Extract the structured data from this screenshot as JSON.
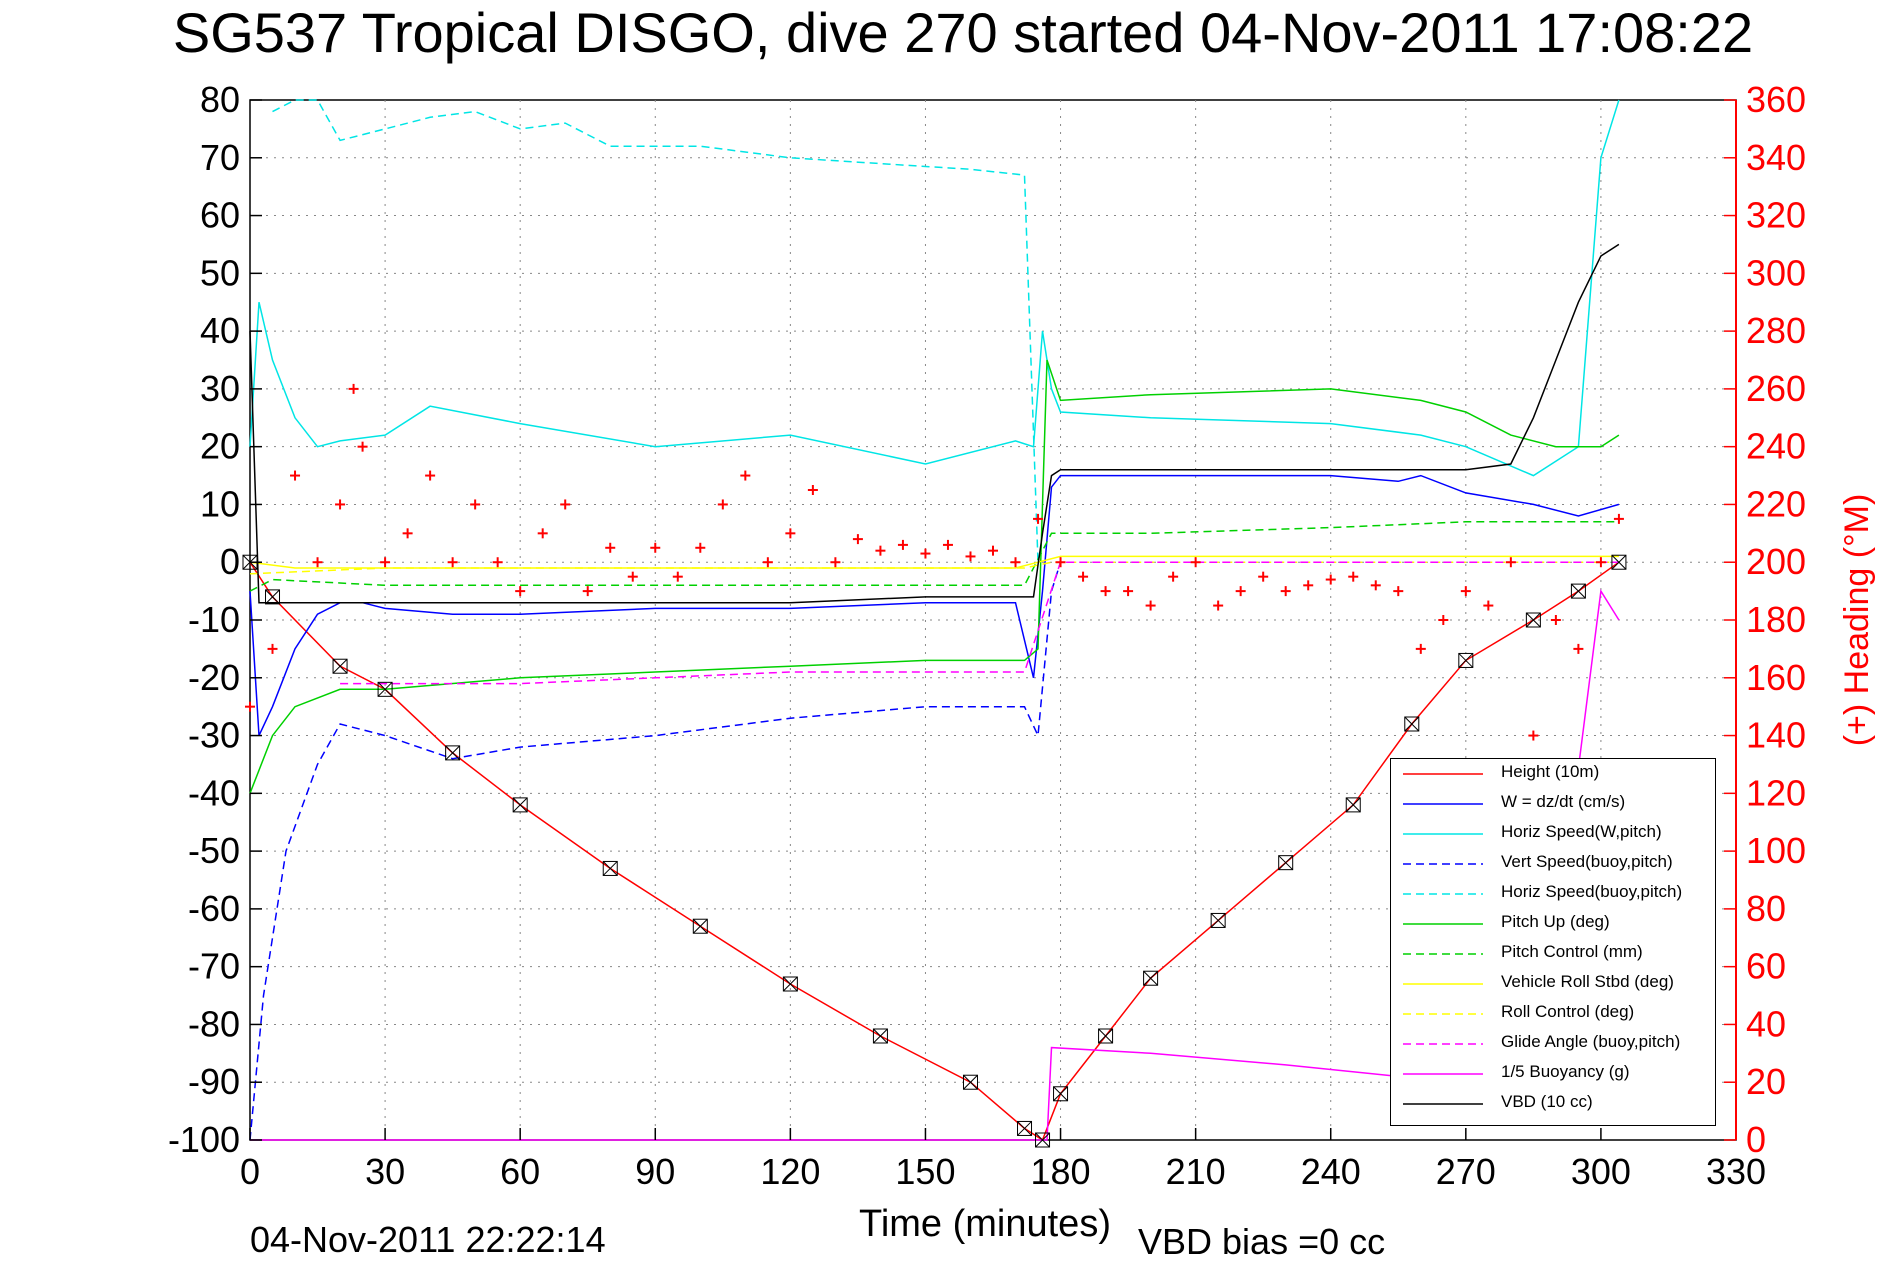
{
  "chart_data": {
    "type": "line",
    "title": "SG537 Tropical DISGO, dive 270 started 04-Nov-2011 17:08:22",
    "xlabel": "Time (minutes)",
    "ylabel_right": "(+) Heading (°M)",
    "footer_left": "04-Nov-2011 22:22:14",
    "footer_right": "VBD bias =0 cc",
    "xlim": [
      0,
      330
    ],
    "ylim": [
      -100,
      80
    ],
    "y2lim": [
      0,
      360
    ],
    "x_ticks": [
      0,
      30,
      60,
      90,
      120,
      150,
      180,
      210,
      240,
      270,
      300,
      330
    ],
    "y_ticks": [
      -100,
      -90,
      -80,
      -70,
      -60,
      -50,
      -40,
      -30,
      -20,
      -10,
      0,
      10,
      20,
      30,
      40,
      50,
      60,
      70,
      80
    ],
    "y2_ticks": [
      0,
      20,
      40,
      60,
      80,
      100,
      120,
      140,
      160,
      180,
      200,
      220,
      240,
      260,
      280,
      300,
      320,
      340,
      360
    ],
    "grid": true,
    "legend_position": "bottom-right",
    "colors": {
      "height": "#ff0000",
      "w": "#0000ff",
      "horiz_w": "#00e5e5",
      "vert_buoy": "#0000ff",
      "horiz_buoy": "#00e5e5",
      "pitch_up": "#00d000",
      "pitch_control": "#00d000",
      "roll": "#ffff00",
      "roll_control": "#ffff00",
      "glide": "#ff00ff",
      "buoyancy": "#ff00ff",
      "vbd": "#000000",
      "heading": "#ff0000",
      "right_axis": "#ff0000"
    },
    "series": [
      {
        "name": "Height (10m)",
        "style": "solid",
        "color": "#ff0000",
        "x": [
          0,
          5,
          20,
          30,
          45,
          60,
          80,
          100,
          120,
          140,
          160,
          172,
          176,
          180,
          190,
          200,
          215,
          230,
          245,
          258,
          270,
          285,
          295,
          304
        ],
        "y": [
          0,
          -6,
          -18,
          -22,
          -33,
          -42,
          -53,
          -63,
          -73,
          -82,
          -90,
          -98,
          -100,
          -92,
          -82,
          -72,
          -62,
          -52,
          -42,
          -28,
          -17,
          -10,
          -5,
          0
        ]
      },
      {
        "name": "W = dz/dt (cm/s)",
        "style": "solid",
        "color": "#0000ff",
        "x": [
          0,
          2,
          5,
          10,
          15,
          20,
          25,
          30,
          45,
          60,
          90,
          120,
          150,
          170,
          174,
          176,
          178,
          180,
          200,
          240,
          255,
          260,
          270,
          285,
          295,
          304
        ],
        "y": [
          -5,
          -30,
          -25,
          -15,
          -9,
          -7,
          -7,
          -8,
          -9,
          -9,
          -8,
          -8,
          -7,
          -7,
          -20,
          -5,
          13,
          15,
          15,
          15,
          14,
          15,
          12,
          10,
          8,
          10
        ]
      },
      {
        "name": "Horiz Speed(W,pitch)",
        "style": "solid",
        "color": "#00e5e5",
        "x": [
          0,
          2,
          5,
          10,
          15,
          20,
          30,
          40,
          60,
          90,
          120,
          150,
          170,
          174,
          176,
          178,
          180,
          200,
          240,
          260,
          270,
          285,
          295,
          300,
          304
        ],
        "y": [
          20,
          45,
          35,
          25,
          20,
          21,
          22,
          27,
          24,
          20,
          22,
          17,
          21,
          20,
          40,
          30,
          26,
          25,
          24,
          22,
          20,
          15,
          20,
          70,
          80
        ]
      },
      {
        "name": "Vert Speed(buoy,pitch)",
        "style": "dashed",
        "color": "#0000ff",
        "x": [
          0,
          3,
          8,
          15,
          20,
          30,
          45,
          60,
          90,
          120,
          150,
          172,
          175,
          178,
          180
        ],
        "y": [
          -100,
          -75,
          -50,
          -35,
          -28,
          -30,
          -34,
          -32,
          -30,
          -27,
          -25,
          -25,
          -30,
          -5,
          0
        ]
      },
      {
        "name": "Horiz Speed(buoy,pitch)",
        "style": "dashed",
        "color": "#00e5e5",
        "x": [
          5,
          10,
          15,
          20,
          30,
          40,
          50,
          60,
          70,
          80,
          100,
          120,
          140,
          160,
          172,
          175
        ],
        "y": [
          78,
          80,
          80,
          73,
          75,
          77,
          78,
          75,
          76,
          72,
          72,
          70,
          69,
          68,
          67,
          0
        ]
      },
      {
        "name": "Pitch Up (deg)",
        "style": "solid",
        "color": "#00d000",
        "x": [
          0,
          5,
          10,
          20,
          30,
          60,
          90,
          120,
          150,
          172,
          175,
          177,
          180,
          200,
          240,
          260,
          270,
          280,
          290,
          300,
          304
        ],
        "y": [
          -40,
          -30,
          -25,
          -22,
          -22,
          -20,
          -19,
          -18,
          -17,
          -17,
          -15,
          35,
          28,
          29,
          30,
          28,
          26,
          22,
          20,
          20,
          22
        ]
      },
      {
        "name": "Pitch Control (mm)",
        "style": "dashed",
        "color": "#00d000",
        "x": [
          0,
          5,
          30,
          60,
          90,
          120,
          150,
          172,
          178,
          200,
          240,
          270,
          304
        ],
        "y": [
          -5,
          -3,
          -4,
          -4,
          -4,
          -4,
          -4,
          -4,
          5,
          5,
          6,
          7,
          7
        ]
      },
      {
        "name": "Vehicle Roll Stbd (deg)",
        "style": "solid",
        "color": "#ffff00",
        "x": [
          0,
          10,
          20,
          30,
          60,
          90,
          120,
          150,
          170,
          180,
          210,
          240,
          270,
          300,
          304
        ],
        "y": [
          0,
          -1,
          -1,
          -1,
          -1,
          -1,
          -1,
          -1,
          -1,
          1,
          1,
          1,
          1,
          1,
          1
        ]
      },
      {
        "name": "Roll Control (deg)",
        "style": "dashed",
        "color": "#ffff00",
        "x": [
          0,
          30,
          60,
          90,
          120,
          150,
          172,
          178,
          210,
          240,
          270,
          304
        ],
        "y": [
          -2,
          -1,
          -1,
          -1,
          -1,
          -1,
          -1,
          0,
          0,
          0,
          0,
          0
        ]
      },
      {
        "name": "Glide Angle (buoy,pitch)",
        "style": "dashed",
        "color": "#ff00ff",
        "x": [
          20,
          30,
          60,
          90,
          120,
          150,
          172,
          180,
          210,
          240,
          270,
          304
        ],
        "y": [
          -21,
          -21,
          -21,
          -20,
          -19,
          -19,
          -19,
          0,
          0,
          0,
          0,
          0
        ]
      },
      {
        "name": "1/5 Buoyancy (g)",
        "style": "solid",
        "color": "#ff00ff",
        "x": [
          0,
          5,
          172,
          177,
          178,
          200,
          230,
          255,
          270,
          285,
          300,
          304
        ],
        "y": [
          -100,
          -100,
          -100,
          -100,
          -84,
          -85,
          -87,
          -89,
          -92,
          -97,
          -5,
          -10
        ]
      },
      {
        "name": "VBD (10 cc)",
        "style": "solid",
        "color": "#000000",
        "x": [
          0,
          2,
          5,
          30,
          60,
          90,
          120,
          150,
          172,
          174,
          176,
          178,
          180,
          200,
          240,
          270,
          280,
          285,
          290,
          295,
          300,
          304
        ],
        "y": [
          40,
          -7,
          -7,
          -7,
          -7,
          -7,
          -7,
          -6,
          -6,
          -6,
          5,
          15,
          16,
          16,
          16,
          16,
          17,
          25,
          35,
          45,
          53,
          55
        ]
      }
    ],
    "heading": {
      "name": "(+) Heading (°M)",
      "color": "#ff0000",
      "x": [
        0,
        5,
        10,
        15,
        20,
        23,
        25,
        30,
        35,
        40,
        45,
        50,
        55,
        60,
        65,
        70,
        75,
        80,
        85,
        90,
        95,
        100,
        105,
        110,
        115,
        120,
        125,
        130,
        135,
        140,
        145,
        150,
        155,
        160,
        165,
        170,
        175,
        180,
        185,
        190,
        195,
        200,
        205,
        210,
        215,
        220,
        225,
        230,
        235,
        240,
        245,
        250,
        255,
        260,
        265,
        270,
        275,
        280,
        285,
        290,
        295,
        300,
        304
      ],
      "y": [
        150,
        170,
        230,
        200,
        220,
        260,
        240,
        200,
        210,
        230,
        200,
        220,
        200,
        190,
        210,
        220,
        190,
        205,
        195,
        205,
        195,
        205,
        220,
        230,
        200,
        210,
        225,
        200,
        208,
        204,
        206,
        203,
        206,
        202,
        204,
        200,
        215,
        200,
        195,
        190,
        190,
        185,
        195,
        200,
        185,
        190,
        195,
        190,
        192,
        194,
        195,
        192,
        190,
        170,
        180,
        190,
        185,
        200,
        140,
        180,
        170,
        200,
        215
      ]
    }
  },
  "legend": {
    "items": [
      {
        "label": "Height (10m)",
        "color": "#ff0000",
        "dash": "solid"
      },
      {
        "label": "W = dz/dt (cm/s)",
        "color": "#0000ff",
        "dash": "solid"
      },
      {
        "label": "Horiz Speed(W,pitch)",
        "color": "#00e5e5",
        "dash": "solid"
      },
      {
        "label": "Vert Speed(buoy,pitch)",
        "color": "#0000ff",
        "dash": "dashed"
      },
      {
        "label": "Horiz Speed(buoy,pitch)",
        "color": "#00e5e5",
        "dash": "dashed"
      },
      {
        "label": "Pitch Up (deg)",
        "color": "#00d000",
        "dash": "solid"
      },
      {
        "label": "Pitch Control (mm)",
        "color": "#00d000",
        "dash": "dashed"
      },
      {
        "label": "Vehicle Roll Stbd (deg)",
        "color": "#ffff00",
        "dash": "solid"
      },
      {
        "label": "Roll Control (deg)",
        "color": "#ffff00",
        "dash": "dashed"
      },
      {
        "label": "Glide Angle (buoy,pitch)",
        "color": "#ff00ff",
        "dash": "dashed"
      },
      {
        "label": "1/5 Buoyancy (g)",
        "color": "#ff00ff",
        "dash": "solid"
      },
      {
        "label": "VBD (10 cc)",
        "color": "#000000",
        "dash": "solid"
      }
    ]
  }
}
